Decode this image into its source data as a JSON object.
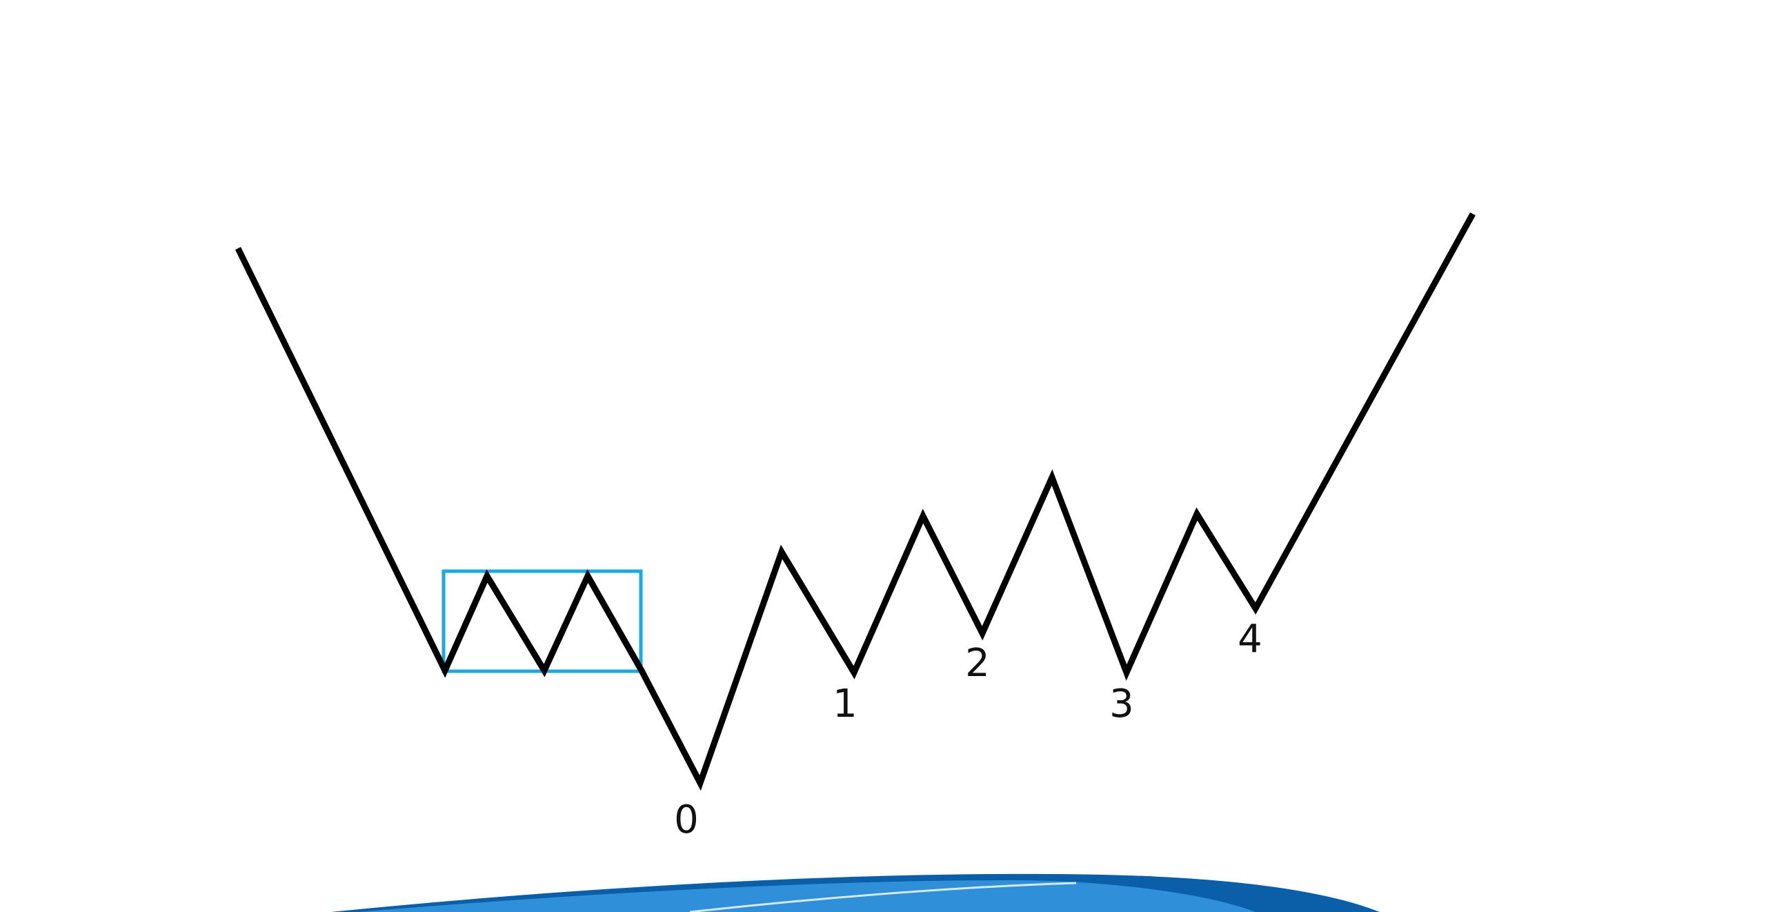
{
  "diagram": {
    "labels": [
      {
        "id": "low-0",
        "text": "0"
      },
      {
        "id": "low-1",
        "text": "1"
      },
      {
        "id": "low-2",
        "text": "2"
      },
      {
        "id": "low-3",
        "text": "3"
      },
      {
        "id": "low-4",
        "text": "4"
      }
    ]
  },
  "colors": {
    "line": "#000000",
    "highlight_box": "#1aa8e8",
    "swoosh_dark": "#0b5ea8",
    "swoosh_light": "#2f8fd8"
  }
}
